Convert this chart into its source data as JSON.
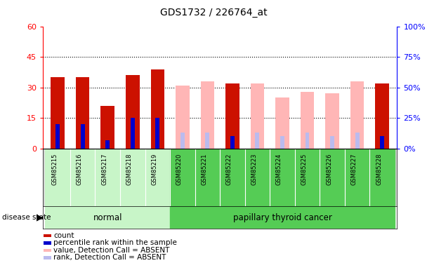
{
  "title": "GDS1732 / 226764_at",
  "samples": [
    "GSM85215",
    "GSM85216",
    "GSM85217",
    "GSM85218",
    "GSM85219",
    "GSM85220",
    "GSM85221",
    "GSM85222",
    "GSM85223",
    "GSM85224",
    "GSM85225",
    "GSM85226",
    "GSM85227",
    "GSM85228"
  ],
  "groups": [
    "normal",
    "normal",
    "normal",
    "normal",
    "normal",
    "cancer",
    "cancer",
    "cancer",
    "cancer",
    "cancer",
    "cancer",
    "cancer",
    "cancer",
    "cancer"
  ],
  "red_values": [
    35,
    35,
    21,
    36,
    39,
    0,
    0,
    32,
    0,
    0,
    0,
    0,
    0,
    32
  ],
  "blue_values": [
    12,
    12,
    4,
    15,
    15,
    0,
    0,
    6,
    0,
    0,
    0,
    0,
    0,
    6
  ],
  "pink_values": [
    0,
    0,
    0,
    0,
    0,
    31,
    33,
    0,
    32,
    25,
    28,
    27,
    33,
    0
  ],
  "lightblue_values": [
    0,
    0,
    0,
    0,
    0,
    8,
    8,
    0,
    8,
    6,
    8,
    6,
    8,
    0
  ],
  "ylim_left": [
    0,
    60
  ],
  "ylim_right": [
    0,
    100
  ],
  "yticks_left": [
    0,
    15,
    30,
    45,
    60
  ],
  "yticks_right": [
    0,
    25,
    50,
    75,
    100
  ],
  "ytick_labels_left": [
    "0",
    "15",
    "30",
    "45",
    "60"
  ],
  "ytick_labels_right": [
    "0%",
    "25%",
    "50%",
    "75%",
    "100%"
  ],
  "bar_width": 0.55,
  "normal_bg": "#c8f5c8",
  "cancer_bg": "#55cc55",
  "plot_bg": "#ffffff",
  "label_area_bg": "#d8d8d8",
  "red_bar_color": "#CC1100",
  "blue_bar_color": "#0000CC",
  "pink_bar_color": "#FFB6B6",
  "lightblue_bar_color": "#BBBBEE",
  "legend_items": [
    [
      "#CC1100",
      "count"
    ],
    [
      "#0000CC",
      "percentile rank within the sample"
    ],
    [
      "#FFB6B6",
      "value, Detection Call = ABSENT"
    ],
    [
      "#BBBBEE",
      "rank, Detection Call = ABSENT"
    ]
  ]
}
